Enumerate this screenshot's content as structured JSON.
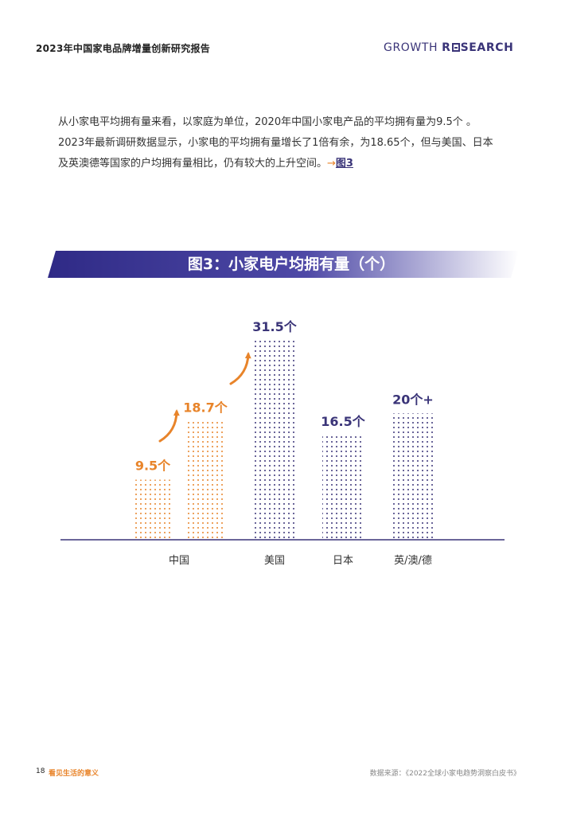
{
  "header": {
    "title": "2023年中国家电品牌增量创新研究报告",
    "brand_left": "GROWTH ",
    "brand_r": "R",
    "brand_right": "SEARCH"
  },
  "paragraph": {
    "line1": "从小家电平均拥有量来看，以家庭为单位，2020年中国小家电产品的平均拥有量为9.5个 。",
    "line2": "2023年最新调研数据显示，小家电的平均拥有量增长了1倍有余，为18.65个，但与美国、日本",
    "line3_text": "及英澳德等国家的户均拥有量相比，仍有较大的上升空间。",
    "line3_arrow": "→",
    "line3_link": "图3"
  },
  "figure": {
    "title": "图3：小家电户均拥有量（个）"
  },
  "chart_data": {
    "type": "bar",
    "title": "图3：小家电户均拥有量（个）",
    "categories": [
      "中国",
      "美国",
      "日本",
      "英/澳/德"
    ],
    "bars": [
      {
        "group": "中国",
        "value": 9.5,
        "label": "9.5个",
        "color": "#e8842a"
      },
      {
        "group": "中国",
        "value": 18.7,
        "label": "18.7个",
        "color": "#e8842a"
      },
      {
        "group": "美国",
        "value": 31.5,
        "label": "31.5个",
        "color": "#3a3478"
      },
      {
        "group": "日本",
        "value": 16.5,
        "label": "16.5个",
        "color": "#3a3478"
      },
      {
        "group": "英/澳/德",
        "value": 20,
        "label": "20个+",
        "color": "#3a3478"
      }
    ],
    "ylim": [
      0,
      31.5
    ],
    "grid": false,
    "axis_color": "#3a3478"
  },
  "footer": {
    "page": "18",
    "tagline": "看见生活的意义",
    "source": "数据来源：《2022全球小家电趋势洞察白皮书》"
  },
  "colors": {
    "accent": "#e8842a",
    "brand": "#3a3478"
  }
}
